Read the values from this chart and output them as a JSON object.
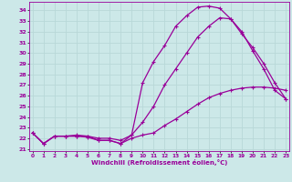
{
  "xlabel": "Windchill (Refroidissement éolien,°C)",
  "bg_color": "#cce8e8",
  "grid_color": "#b8d8d8",
  "line_color": "#990099",
  "x_ticks": [
    0,
    1,
    2,
    3,
    4,
    5,
    6,
    7,
    8,
    9,
    10,
    11,
    12,
    13,
    14,
    15,
    16,
    17,
    18,
    19,
    20,
    21,
    22,
    23
  ],
  "y_ticks": [
    21,
    22,
    23,
    24,
    25,
    26,
    27,
    28,
    29,
    30,
    31,
    32,
    33,
    34
  ],
  "xlim": [
    -0.3,
    23.3
  ],
  "ylim": [
    20.8,
    34.8
  ],
  "curve1_x": [
    0,
    1,
    2,
    3,
    4,
    5,
    6,
    7,
    8,
    9,
    10,
    11,
    12,
    13,
    14,
    15,
    16,
    17,
    18,
    19,
    20,
    21,
    22,
    23
  ],
  "curve1_y": [
    22.5,
    21.5,
    22.2,
    22.2,
    22.2,
    22.1,
    21.8,
    21.8,
    21.5,
    22.3,
    27.2,
    29.2,
    30.7,
    32.5,
    33.5,
    34.3,
    34.4,
    34.2,
    33.2,
    32.0,
    30.2,
    28.5,
    26.5,
    25.7
  ],
  "curve2_x": [
    0,
    1,
    2,
    3,
    4,
    5,
    6,
    7,
    8,
    9,
    10,
    11,
    12,
    13,
    14,
    15,
    16,
    17,
    18,
    19,
    20,
    21,
    22,
    23
  ],
  "curve2_y": [
    22.5,
    21.5,
    22.2,
    22.2,
    22.3,
    22.2,
    22.0,
    22.0,
    21.8,
    22.3,
    23.5,
    25.0,
    27.0,
    28.5,
    30.0,
    31.5,
    32.5,
    33.3,
    33.2,
    31.8,
    30.5,
    29.0,
    27.2,
    25.7
  ],
  "curve3_x": [
    0,
    1,
    2,
    3,
    4,
    5,
    6,
    7,
    8,
    9,
    10,
    11,
    12,
    13,
    14,
    15,
    16,
    17,
    18,
    19,
    20,
    21,
    22,
    23
  ],
  "curve3_y": [
    22.5,
    21.5,
    22.2,
    22.2,
    22.2,
    22.2,
    21.8,
    21.8,
    21.5,
    22.0,
    22.3,
    22.5,
    23.2,
    23.8,
    24.5,
    25.2,
    25.8,
    26.2,
    26.5,
    26.7,
    26.8,
    26.8,
    26.7,
    26.5
  ]
}
